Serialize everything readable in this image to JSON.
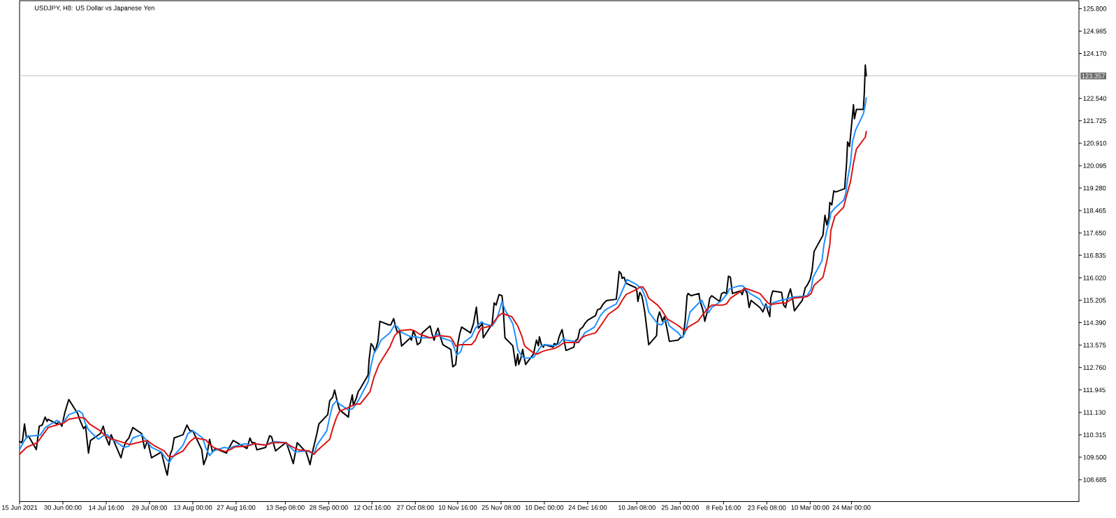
{
  "chart_data": {
    "type": "line",
    "title": "USDJPY, H8: US Dollar vs Japanese Yen",
    "xlim": [
      "2021-06-15T08:00",
      "2022-06-09T00:00"
    ],
    "ylim": [
      107.89,
      126.09
    ],
    "xticks": [
      {
        "value": "2021-06-15T08:00",
        "label": "15 Jun 2021"
      },
      {
        "value": "2021-06-30T00:00",
        "label": "30 Jun 00:00"
      },
      {
        "value": "2021-07-14T16:00",
        "label": "14 Jul 16:00"
      },
      {
        "value": "2021-07-29T08:00",
        "label": "29 Jul 08:00"
      },
      {
        "value": "2021-08-13T00:00",
        "label": "13 Aug 00:00"
      },
      {
        "value": "2021-08-27T16:00",
        "label": "27 Aug 16:00"
      },
      {
        "value": "2021-09-13T08:00",
        "label": "13 Sep 08:00"
      },
      {
        "value": "2021-09-28T00:00",
        "label": "28 Sep 00:00"
      },
      {
        "value": "2021-10-12T16:00",
        "label": "12 Oct 16:00"
      },
      {
        "value": "2021-10-27T08:00",
        "label": "27 Oct 08:00"
      },
      {
        "value": "2021-11-10T16:00",
        "label": "10 Nov 16:00"
      },
      {
        "value": "2021-11-25T08:00",
        "label": "25 Nov 08:00"
      },
      {
        "value": "2021-12-10T00:00",
        "label": "10 Dec 00:00"
      },
      {
        "value": "2021-12-24T16:00",
        "label": "24 Dec 16:00"
      },
      {
        "value": "2022-01-10T08:00",
        "label": "10 Jan 08:00"
      },
      {
        "value": "2022-01-25T00:00",
        "label": "25 Jan 00:00"
      },
      {
        "value": "2022-02-08T16:00",
        "label": "8 Feb 16:00"
      },
      {
        "value": "2022-02-23T08:00",
        "label": "23 Feb 08:00"
      },
      {
        "value": "2022-03-10T00:00",
        "label": "10 Mar 00:00"
      },
      {
        "value": "2022-03-24T00:00",
        "label": "24 Mar 00:00"
      }
    ],
    "yticks": [
      108.685,
      {
        "value": 109.5,
        "label": "109.500"
      },
      110.315,
      {
        "value": 111.13,
        "label": "111.130"
      },
      111.945,
      {
        "value": 112.76,
        "label": "112.760"
      },
      113.575,
      {
        "value": 114.39,
        "label": "114.390"
      },
      115.205,
      {
        "value": 116.02,
        "label": "116.020"
      },
      116.835,
      {
        "value": 117.65,
        "label": "117.650"
      },
      118.465,
      {
        "value": 119.28,
        "label": "119.280"
      },
      120.095,
      {
        "value": 120.91,
        "label": "120.910"
      },
      121.725,
      {
        "value": 122.54,
        "label": "122.540"
      },
      {
        "value": 124.17,
        "label": "124.170"
      },
      124.985,
      {
        "value": 125.8,
        "label": "125.800"
      }
    ],
    "ref_lines": [
      {
        "axis": "y",
        "value": 123.357,
        "label": "123.357",
        "color": "#c0c0c0"
      }
    ],
    "series": [
      {
        "color": "#000000",
        "x": [
          "2021-06-15T08:00",
          "2021-06-16T00:00",
          "2021-06-16T08:00",
          "2021-06-17T00:00",
          "2021-06-17T16:00",
          "2021-06-18T08:00",
          "2021-06-21T00:00",
          "2021-06-22T00:00",
          "2021-06-23T00:00",
          "2021-06-24T00:00",
          "2021-06-24T16:00",
          "2021-06-25T00:00",
          "2021-06-28T00:00",
          "2021-06-28T16:00",
          "2021-06-29T16:00",
          "2021-06-30T16:00",
          "2021-07-02T00:00",
          "2021-07-05T00:00",
          "2021-07-05T16:00",
          "2021-07-07T00:00",
          "2021-07-07T16:00",
          "2021-07-08T16:00",
          "2021-07-09T08:00",
          "2021-07-12T16:00",
          "2021-07-13T16:00",
          "2021-07-14T16:00",
          "2021-07-15T16:00",
          "2021-07-16T08:00",
          "2021-07-19T16:00",
          "2021-07-20T08:00",
          "2021-07-21T08:00",
          "2021-07-22T08:00",
          "2021-07-23T16:00",
          "2021-07-26T16:00",
          "2021-07-27T16:00",
          "2021-07-28T16:00",
          "2021-07-30T00:00",
          "2021-08-02T08:00",
          "2021-08-03T16:00",
          "2021-08-04T08:00",
          "2021-08-05T08:00",
          "2021-08-06T00:00",
          "2021-08-06T16:00",
          "2021-08-09T16:00",
          "2021-08-11T00:00",
          "2021-08-12T00:00",
          "2021-08-13T00:00",
          "2021-08-16T00:00",
          "2021-08-16T16:00",
          "2021-08-17T16:00",
          "2021-08-18T16:00",
          "2021-08-19T16:00",
          "2021-08-20T16:00",
          "2021-08-24T08:00",
          "2021-08-25T08:00",
          "2021-08-26T16:00",
          "2021-08-30T00:00",
          "2021-08-31T08:00",
          "2021-09-01T08:00",
          "2021-09-02T00:00",
          "2021-09-03T00:00",
          "2021-09-03T16:00",
          "2021-09-06T16:00",
          "2021-09-08T00:00",
          "2021-09-08T16:00",
          "2021-09-10T00:00",
          "2021-09-13T00:00",
          "2021-09-13T16:00",
          "2021-09-15T00:00",
          "2021-09-16T00:00",
          "2021-09-16T16:00",
          "2021-09-17T08:00",
          "2021-09-20T08:00",
          "2021-09-21T00:00",
          "2021-09-21T16:00",
          "2021-09-22T16:00",
          "2021-09-24T00:00",
          "2021-09-24T16:00",
          "2021-09-27T16:00",
          "2021-09-28T08:00",
          "2021-09-29T08:00",
          "2021-09-30T00:00",
          "2021-10-01T00:00",
          "2021-10-01T16:00",
          "2021-10-04T16:00",
          "2021-10-05T00:00",
          "2021-10-06T00:00",
          "2021-10-06T08:00",
          "2021-10-07T08:00",
          "2021-10-08T00:00",
          "2021-10-08T16:00",
          "2021-10-11T08:00",
          "2021-10-11T16:00",
          "2021-10-12T08:00",
          "2021-10-13T00:00",
          "2021-10-13T16:00",
          "2021-10-14T16:00",
          "2021-10-15T08:00",
          "2021-10-18T08:00",
          "2021-10-19T00:00",
          "2021-10-20T00:00",
          "2021-10-20T16:00",
          "2021-10-21T08:00",
          "2021-10-22T00:00",
          "2021-10-22T16:00",
          "2021-10-25T16:00",
          "2021-10-26T00:00",
          "2021-10-26T16:00",
          "2021-10-27T08:00",
          "2021-10-28T00:00",
          "2021-10-29T00:00",
          "2021-10-29T16:00",
          "2021-11-01T08:00",
          "2021-11-02T00:00",
          "2021-11-02T16:00",
          "2021-11-03T08:00",
          "2021-11-04T00:00",
          "2021-11-04T16:00",
          "2021-11-05T16:00",
          "2021-11-08T08:00",
          "2021-11-09T00:00",
          "2021-11-10T00:00",
          "2021-11-10T16:00",
          "2021-11-11T08:00",
          "2021-11-12T00:00",
          "2021-11-15T00:00",
          "2021-11-16T00:00",
          "2021-11-17T00:00",
          "2021-11-17T16:00",
          "2021-11-18T16:00",
          "2021-11-19T00:00",
          "2021-11-19T08:00",
          "2021-11-22T08:00",
          "2021-11-23T00:00",
          "2021-11-23T16:00",
          "2021-11-24T00:00",
          "2021-11-24T16:00",
          "2021-11-25T16:00",
          "2021-11-26T00:00",
          "2021-11-26T16:00",
          "2021-11-29T08:00",
          "2021-11-30T08:00",
          "2021-12-01T00:00",
          "2021-12-01T08:00",
          "2021-12-02T00:00",
          "2021-12-02T16:00",
          "2021-12-03T00:00",
          "2021-12-03T16:00",
          "2021-12-06T08:00",
          "2021-12-07T08:00",
          "2021-12-08T00:00",
          "2021-12-08T08:00",
          "2021-12-09T00:00",
          "2021-12-09T16:00",
          "2021-12-10T00:00",
          "2021-12-13T00:00",
          "2021-12-13T08:00",
          "2021-12-14T08:00",
          "2021-12-15T00:00",
          "2021-12-16T00:00",
          "2021-12-16T16:00",
          "2021-12-17T08:00",
          "2021-12-20T00:00",
          "2021-12-20T08:00",
          "2021-12-21T08:00",
          "2021-12-22T00:00",
          "2021-12-23T00:00",
          "2021-12-23T16:00",
          "2021-12-24T16:00",
          "2021-12-27T08:00",
          "2021-12-28T00:00",
          "2021-12-29T00:00",
          "2021-12-29T16:00",
          "2021-12-30T16:00",
          "2021-12-31T08:00",
          "2022-01-03T08:00",
          "2022-01-03T16:00",
          "2022-01-04T08:00",
          "2022-01-05T00:00",
          "2022-01-05T08:00",
          "2022-01-06T00:00",
          "2022-01-06T16:00",
          "2022-01-07T08:00",
          "2022-01-10T00:00",
          "2022-01-10T08:00",
          "2022-01-10T16:00",
          "2022-01-11T08:00",
          "2022-01-12T00:00",
          "2022-01-12T08:00",
          "2022-01-13T00:00",
          "2022-01-13T16:00",
          "2022-01-14T08:00",
          "2022-01-17T00:00",
          "2022-01-17T08:00",
          "2022-01-18T00:00",
          "2022-01-18T16:00",
          "2022-01-19T00:00",
          "2022-01-19T16:00",
          "2022-01-20T16:00",
          "2022-01-21T08:00",
          "2022-01-24T08:00",
          "2022-01-25T00:00",
          "2022-01-26T00:00",
          "2022-01-26T16:00",
          "2022-01-27T08:00",
          "2022-01-27T16:00",
          "2022-01-28T16:00",
          "2022-01-31T08:00",
          "2022-01-31T16:00",
          "2022-02-01T16:00",
          "2022-02-02T08:00",
          "2022-02-03T08:00",
          "2022-02-04T00:00",
          "2022-02-04T16:00",
          "2022-02-07T08:00",
          "2022-02-08T00:00",
          "2022-02-09T00:00",
          "2022-02-09T16:00",
          "2022-02-10T08:00",
          "2022-02-11T00:00",
          "2022-02-11T16:00",
          "2022-02-14T08:00",
          "2022-02-15T00:00",
          "2022-02-15T16:00",
          "2022-02-16T00:00",
          "2022-02-16T16:00",
          "2022-02-17T08:00",
          "2022-02-18T00:00",
          "2022-02-21T00:00",
          "2022-02-22T00:00",
          "2022-02-23T00:00",
          "2022-02-23T16:00",
          "2022-02-24T08:00",
          "2022-02-24T16:00",
          "2022-02-25T08:00",
          "2022-02-28T08:00",
          "2022-03-01T00:00",
          "2022-03-01T16:00",
          "2022-03-02T08:00",
          "2022-03-03T08:00",
          "2022-03-04T00:00",
          "2022-03-04T16:00",
          "2022-03-07T08:00",
          "2022-03-08T08:00",
          "2022-03-09T00:00",
          "2022-03-10T00:00",
          "2022-03-10T16:00",
          "2022-03-11T08:00",
          "2022-03-14T08:00",
          "2022-03-15T00:00",
          "2022-03-15T16:00",
          "2022-03-16T08:00",
          "2022-03-16T16:00",
          "2022-03-17T08:00",
          "2022-03-18T00:00",
          "2022-03-18T16:00",
          "2022-03-21T16:00",
          "2022-03-22T08:00",
          "2022-03-22T16:00",
          "2022-03-23T08:00",
          "2022-03-24T00:00",
          "2022-03-24T16:00",
          "2022-03-25T00:00",
          "2022-03-25T16:00",
          "2022-03-28T00:00",
          "2022-03-28T08:00",
          "2022-03-28T16:00",
          "2022-03-29T00:00"
        ],
        "values": [
          110.07,
          110.03,
          110.11,
          110.71,
          110.2,
          110.28,
          109.78,
          110.63,
          110.67,
          110.96,
          110.8,
          110.88,
          110.71,
          110.8,
          110.63,
          111.13,
          111.6,
          111.09,
          110.88,
          110.54,
          110.63,
          109.65,
          110.11,
          110.36,
          110.63,
          110.2,
          109.94,
          110.32,
          109.48,
          109.78,
          110.07,
          110.2,
          110.58,
          110.36,
          109.82,
          110.11,
          109.48,
          109.69,
          109.1,
          108.85,
          109.61,
          109.78,
          110.2,
          110.32,
          110.67,
          110.46,
          110.46,
          109.78,
          109.23,
          109.52,
          110.15,
          109.69,
          109.82,
          109.65,
          109.86,
          110.11,
          109.9,
          109.82,
          110.2,
          110.03,
          110.03,
          109.77,
          109.86,
          110.28,
          110.24,
          109.73,
          109.99,
          110.03,
          109.61,
          109.27,
          109.65,
          110.03,
          109.69,
          109.48,
          109.23,
          109.77,
          110.36,
          110.71,
          111.05,
          111.55,
          111.68,
          111.94,
          111.47,
          111.22,
          110.96,
          111.3,
          111.77,
          111.39,
          111.64,
          111.89,
          111.99,
          112.49,
          113.04,
          113.63,
          113.54,
          113.33,
          113.71,
          114.44,
          114.31,
          114.31,
          114.54,
          114.23,
          114.02,
          114.1,
          113.54,
          113.84,
          113.75,
          114.1,
          113.92,
          113.59,
          113.67,
          114.02,
          114.27,
          113.98,
          113.75,
          114.02,
          114.19,
          113.92,
          113.59,
          113.42,
          112.79,
          112.87,
          113.59,
          113.98,
          114.23,
          114.02,
          114.35,
          114.95,
          114.19,
          114.31,
          114.4,
          113.84,
          114.35,
          115.11,
          115.03,
          115.16,
          115.41,
          115.37,
          115.03,
          113.84,
          113.55,
          112.83,
          113.25,
          112.87,
          113.08,
          113.42,
          113.21,
          112.87,
          113.25,
          113.76,
          113.55,
          113.88,
          113.59,
          113.5,
          113.59,
          113.5,
          113.63,
          113.59,
          113.88,
          114.14,
          113.76,
          113.38,
          113.5,
          113.71,
          113.8,
          114.14,
          114.23,
          114.35,
          114.48,
          114.65,
          114.86,
          114.9,
          115.03,
          115.16,
          115.2,
          115.24,
          115.53,
          116.25,
          116.17,
          116.0,
          116.04,
          115.83,
          115.79,
          115.66,
          115.53,
          115.16,
          115.49,
          115.37,
          115.2,
          114.78,
          114.19,
          113.59,
          113.92,
          114.52,
          114.78,
          114.57,
          114.44,
          114.61,
          114.1,
          113.71,
          113.76,
          113.84,
          113.88,
          114.44,
          115.37,
          115.45,
          115.37,
          115.45,
          115.2,
          114.86,
          114.44,
          114.86,
          115.28,
          115.37,
          115.16,
          115.45,
          115.49,
          115.45,
          116.08,
          116.04,
          115.45,
          115.54,
          115.41,
          115.66,
          115.58,
          115.45,
          114.94,
          115.2,
          114.94,
          114.78,
          115.07,
          114.82,
          114.61,
          115.28,
          115.54,
          115.49,
          115.03,
          114.94,
          115.28,
          115.62,
          115.28,
          114.82,
          115.2,
          115.66,
          115.75,
          115.96,
          116.29,
          116.98,
          117.57,
          118.29,
          117.94,
          118.25,
          118.76,
          118.67,
          119.18,
          119.14,
          119.26,
          120.19,
          120.96,
          120.79,
          121.55,
          122.31,
          121.8,
          122.14,
          122.14,
          122.74,
          123.75,
          123.36
        ]
      },
      {
        "color": "#1e90ff",
        "x": [
          "2021-06-15T08:00",
          "2021-06-17T00:00",
          "2021-06-18T00:00",
          "2021-06-22T08:00",
          "2021-06-24T00:00",
          "2021-06-28T00:00",
          "2021-06-29T08:00",
          "2021-06-30T16:00",
          "2021-07-02T00:00",
          "2021-07-05T08:00",
          "2021-07-06T16:00",
          "2021-07-07T08:00",
          "2021-07-08T16:00",
          "2021-07-12T00:00",
          "2021-07-13T16:00",
          "2021-07-15T00:00",
          "2021-07-16T16:00",
          "2021-07-20T16:00",
          "2021-07-22T08:00",
          "2021-07-23T16:00",
          "2021-07-26T16:00",
          "2021-07-28T00:00",
          "2021-07-30T00:00",
          "2021-08-02T08:00",
          "2021-08-04T00:00",
          "2021-08-05T00:00",
          "2021-08-06T00:00",
          "2021-08-09T16:00",
          "2021-08-11T08:00",
          "2021-08-13T00:00",
          "2021-08-16T08:00",
          "2021-08-17T08:00",
          "2021-08-18T16:00",
          "2021-08-20T00:00",
          "2021-08-23T16:00",
          "2021-08-25T08:00",
          "2021-08-27T00:00",
          "2021-08-30T16:00",
          "2021-09-01T08:00",
          "2021-09-03T00:00",
          "2021-09-06T16:00",
          "2021-09-08T08:00",
          "2021-09-10T00:00",
          "2021-09-13T08:00",
          "2021-09-14T16:00",
          "2021-09-16T16:00",
          "2021-09-20T08:00",
          "2021-09-21T16:00",
          "2021-09-23T00:00",
          "2021-09-24T00:00",
          "2021-09-27T08:00",
          "2021-09-28T08:00",
          "2021-09-29T08:00",
          "2021-09-30T16:00",
          "2021-10-01T16:00",
          "2021-10-04T16:00",
          "2021-10-06T00:00",
          "2021-10-07T00:00",
          "2021-10-08T00:00",
          "2021-10-11T08:00",
          "2021-10-12T08:00",
          "2021-10-13T08:00",
          "2021-10-14T16:00",
          "2021-10-15T16:00",
          "2021-10-18T16:00",
          "2021-10-20T08:00",
          "2021-10-21T08:00",
          "2021-10-22T08:00",
          "2021-10-25T16:00",
          "2021-10-27T08:00",
          "2021-10-29T00:00",
          "2021-11-01T16:00",
          "2021-11-03T00:00",
          "2021-11-04T00:00",
          "2021-11-05T08:00",
          "2021-11-08T16:00",
          "2021-11-09T16:00",
          "2021-11-10T08:00",
          "2021-11-11T16:00",
          "2021-11-12T16:00",
          "2021-11-15T08:00",
          "2021-11-16T16:00",
          "2021-11-17T16:00",
          "2021-11-18T16:00",
          "2021-11-19T16:00",
          "2021-11-22T08:00",
          "2021-11-23T16:00",
          "2021-11-24T16:00",
          "2021-11-25T16:00",
          "2021-11-26T16:00",
          "2021-11-29T08:00",
          "2021-11-30T08:00",
          "2021-12-01T00:00",
          "2021-12-02T08:00",
          "2021-12-03T08:00",
          "2021-12-06T08:00",
          "2021-12-07T16:00",
          "2021-12-09T00:00",
          "2021-12-10T08:00",
          "2021-12-13T16:00",
          "2021-12-15T00:00",
          "2021-12-16T08:00",
          "2021-12-17T08:00",
          "2021-12-20T08:00",
          "2021-12-21T16:00",
          "2021-12-22T16:00",
          "2021-12-23T16:00",
          "2021-12-27T00:00",
          "2021-12-28T00:00",
          "2021-12-29T00:00",
          "2021-12-30T08:00",
          "2021-12-31T08:00",
          "2022-01-03T08:00",
          "2022-01-04T16:00",
          "2022-01-06T00:00",
          "2022-01-07T00:00",
          "2022-01-10T00:00",
          "2022-01-11T00:00",
          "2022-01-12T00:00",
          "2022-01-13T08:00",
          "2022-01-14T08:00",
          "2022-01-17T08:00",
          "2022-01-18T16:00",
          "2022-01-19T16:00",
          "2022-01-20T16:00",
          "2022-01-21T08:00",
          "2022-01-24T08:00",
          "2022-01-25T16:00",
          "2022-01-26T16:00",
          "2022-01-27T16:00",
          "2022-01-28T08:00",
          "2022-01-31T08:00",
          "2022-02-01T08:00",
          "2022-02-02T00:00",
          "2022-02-03T00:00",
          "2022-02-03T16:00",
          "2022-02-04T16:00",
          "2022-02-07T16:00",
          "2022-02-09T00:00",
          "2022-02-10T00:00",
          "2022-02-10T16:00",
          "2022-02-14T00:00",
          "2022-02-15T08:00",
          "2022-02-16T08:00",
          "2022-02-17T16:00",
          "2022-02-21T00:00",
          "2022-02-22T00:00",
          "2022-02-23T00:00",
          "2022-02-24T08:00",
          "2022-02-25T08:00",
          "2022-02-28T08:00",
          "2022-03-01T16:00",
          "2022-03-03T00:00",
          "2022-03-04T08:00",
          "2022-03-07T16:00",
          "2022-03-09T00:00",
          "2022-03-10T08:00",
          "2022-03-11T00:00",
          "2022-03-14T00:00",
          "2022-03-14T16:00",
          "2022-03-15T16:00",
          "2022-03-16T16:00",
          "2022-03-17T00:00",
          "2022-03-18T08:00",
          "2022-03-21T08:00",
          "2022-03-22T00:00",
          "2022-03-22T16:00",
          "2022-03-23T16:00",
          "2022-03-24T08:00",
          "2022-03-25T08:00",
          "2022-03-28T00:00",
          "2022-03-28T16:00",
          "2022-03-29T00:00"
        ],
        "values": [
          109.78,
          110.11,
          110.26,
          110.3,
          110.58,
          110.84,
          110.71,
          110.84,
          111.05,
          111.19,
          111.09,
          110.8,
          110.5,
          110.15,
          110.28,
          110.32,
          110.15,
          109.86,
          109.9,
          110.2,
          110.32,
          110.15,
          109.86,
          109.69,
          109.44,
          109.31,
          109.48,
          109.94,
          110.36,
          110.46,
          110.2,
          109.86,
          109.56,
          109.73,
          109.86,
          109.82,
          109.9,
          109.99,
          109.94,
          109.99,
          109.94,
          110.03,
          110.07,
          110.03,
          109.9,
          109.69,
          109.73,
          109.69,
          109.61,
          109.94,
          110.46,
          110.96,
          111.39,
          111.55,
          111.43,
          111.22,
          111.26,
          111.39,
          111.55,
          112.24,
          112.83,
          113.29,
          113.5,
          113.75,
          114.02,
          114.31,
          114.23,
          114.06,
          113.88,
          113.88,
          113.84,
          113.84,
          113.92,
          113.98,
          113.84,
          113.71,
          113.42,
          113.21,
          113.33,
          113.67,
          113.88,
          114.19,
          114.31,
          114.42,
          114.35,
          114.27,
          114.48,
          114.78,
          115.16,
          114.86,
          114.35,
          113.84,
          113.42,
          113.17,
          113.1,
          113.12,
          113.33,
          113.55,
          113.59,
          113.55,
          113.63,
          113.8,
          113.76,
          113.71,
          113.67,
          113.84,
          114.02,
          114.23,
          114.44,
          114.65,
          114.82,
          114.9,
          115.07,
          115.37,
          115.7,
          115.96,
          115.79,
          115.7,
          115.62,
          115.28,
          114.78,
          114.35,
          114.31,
          114.44,
          114.48,
          114.27,
          114.02,
          113.84,
          114.02,
          114.48,
          114.78,
          115.11,
          115.21,
          115.03,
          114.82,
          114.76,
          114.94,
          115.16,
          115.32,
          115.45,
          115.62,
          115.73,
          115.72,
          115.58,
          115.45,
          115.24,
          115.03,
          114.99,
          114.94,
          115.11,
          115.21,
          115.24,
          115.28,
          115.32,
          115.35,
          115.37,
          115.62,
          116.04,
          116.64,
          117.23,
          117.74,
          118.17,
          118.38,
          118.55,
          118.84,
          119.05,
          119.6,
          120.19,
          120.96,
          121.38,
          121.97,
          122.31,
          122.56
        ]
      },
      {
        "color": "#dc1414",
        "x": [
          "2021-06-15T08:00",
          "2021-06-17T16:00",
          "2021-06-21T08:00",
          "2021-06-23T00:00",
          "2021-06-25T00:00",
          "2021-06-29T00:00",
          "2021-06-30T08:00",
          "2021-07-02T00:00",
          "2021-07-05T16:00",
          "2021-07-07T08:00",
          "2021-07-09T00:00",
          "2021-07-12T16:00",
          "2021-07-14T08:00",
          "2021-07-16T00:00",
          "2021-07-20T08:00",
          "2021-07-22T16:00",
          "2021-07-26T16:00",
          "2021-07-28T16:00",
          "2021-07-30T16:00",
          "2021-08-03T08:00",
          "2021-08-04T16:00",
          "2021-08-06T00:00",
          "2021-08-09T16:00",
          "2021-08-12T00:00",
          "2021-08-13T16:00",
          "2021-08-17T08:00",
          "2021-08-19T00:00",
          "2021-08-20T16:00",
          "2021-08-24T00:00",
          "2021-08-25T16:00",
          "2021-08-27T08:00",
          "2021-08-31T08:00",
          "2021-09-02T16:00",
          "2021-09-06T16:00",
          "2021-09-09T00:00",
          "2021-09-13T08:00",
          "2021-09-15T08:00",
          "2021-09-17T16:00",
          "2021-09-21T08:00",
          "2021-09-23T00:00",
          "2021-09-24T00:00",
          "2021-09-28T08:00",
          "2021-09-29T08:00",
          "2021-09-30T16:00",
          "2021-10-01T16:00",
          "2021-10-05T08:00",
          "2021-10-07T00:00",
          "2021-10-08T16:00",
          "2021-10-12T00:00",
          "2021-10-13T08:00",
          "2021-10-15T00:00",
          "2021-10-18T16:00",
          "2021-10-20T08:00",
          "2021-10-22T00:00",
          "2021-10-25T16:00",
          "2021-10-27T00:00",
          "2021-10-28T16:00",
          "2021-11-01T08:00",
          "2021-11-03T00:00",
          "2021-11-04T08:00",
          "2021-11-08T00:00",
          "2021-11-09T00:00",
          "2021-11-10T00:00",
          "2021-11-11T16:00",
          "2021-11-15T08:00",
          "2021-11-16T16:00",
          "2021-11-17T16:00",
          "2021-11-18T16:00",
          "2021-11-22T00:00",
          "2021-11-23T08:00",
          "2021-11-24T16:00",
          "2021-11-25T16:00",
          "2021-11-29T00:00",
          "2021-11-30T00:00",
          "2021-12-01T00:00",
          "2021-12-02T08:00",
          "2021-12-03T08:00",
          "2021-12-06T08:00",
          "2021-12-07T16:00",
          "2021-12-09T00:00",
          "2021-12-10T08:00",
          "2021-12-13T16:00",
          "2021-12-15T00:00",
          "2021-12-16T16:00",
          "2021-12-20T00:00",
          "2021-12-21T08:00",
          "2021-12-22T16:00",
          "2021-12-24T00:00",
          "2021-12-27T08:00",
          "2021-12-29T00:00",
          "2021-12-30T08:00",
          "2021-12-31T16:00",
          "2022-01-04T00:00",
          "2022-01-05T08:00",
          "2022-01-06T16:00",
          "2022-01-10T08:00",
          "2022-01-11T08:00",
          "2022-01-12T08:00",
          "2022-01-13T08:00",
          "2022-01-14T08:00",
          "2022-01-17T08:00",
          "2022-01-18T16:00",
          "2022-01-19T16:00",
          "2022-01-20T16:00",
          "2022-01-24T00:00",
          "2022-01-25T00:00",
          "2022-01-26T00:00",
          "2022-01-27T00:00",
          "2022-01-27T16:00",
          "2022-01-31T00:00",
          "2022-02-01T16:00",
          "2022-02-03T08:00",
          "2022-02-04T16:00",
          "2022-02-08T08:00",
          "2022-02-09T16:00",
          "2022-02-11T00:00",
          "2022-02-14T08:00",
          "2022-02-16T00:00",
          "2022-02-17T16:00",
          "2022-02-21T00:00",
          "2022-02-22T08:00",
          "2022-02-23T16:00",
          "2022-02-24T16:00",
          "2022-02-28T08:00",
          "2022-03-01T16:00",
          "2022-03-03T00:00",
          "2022-03-04T08:00",
          "2022-03-07T16:00",
          "2022-03-09T00:00",
          "2022-03-10T08:00",
          "2022-03-11T08:00",
          "2022-03-14T08:00",
          "2022-03-15T16:00",
          "2022-03-16T16:00",
          "2022-03-17T00:00",
          "2022-03-18T08:00",
          "2022-03-21T08:00",
          "2022-03-22T08:00",
          "2022-03-23T16:00",
          "2022-03-24T16:00",
          "2022-03-25T16:00",
          "2022-03-28T16:00",
          "2022-03-29T00:00"
        ],
        "values": [
          109.61,
          109.86,
          110.03,
          110.28,
          110.58,
          110.71,
          110.75,
          110.88,
          110.95,
          110.92,
          110.71,
          110.46,
          110.28,
          110.18,
          110.04,
          109.96,
          110.07,
          110.1,
          109.94,
          109.73,
          109.54,
          109.52,
          109.73,
          110.07,
          110.21,
          110.13,
          109.94,
          109.82,
          109.71,
          109.78,
          109.88,
          109.9,
          109.99,
          109.94,
          110.03,
          110.03,
          109.9,
          109.77,
          109.73,
          109.61,
          109.73,
          110.15,
          110.54,
          110.96,
          111.17,
          111.34,
          111.43,
          111.43,
          111.89,
          112.41,
          112.87,
          113.5,
          113.92,
          114.1,
          114.14,
          114.1,
          113.98,
          113.84,
          113.88,
          113.92,
          113.88,
          113.75,
          113.54,
          113.59,
          113.59,
          113.76,
          114.02,
          114.19,
          114.27,
          114.48,
          114.65,
          114.73,
          114.61,
          114.44,
          114.27,
          113.92,
          113.54,
          113.29,
          113.25,
          113.33,
          113.38,
          113.46,
          113.54,
          113.67,
          113.67,
          113.67,
          113.84,
          113.92,
          114.02,
          114.27,
          114.48,
          114.69,
          114.95,
          115.2,
          115.41,
          115.6,
          115.69,
          115.69,
          115.53,
          115.28,
          115.03,
          114.86,
          114.69,
          114.52,
          114.31,
          114.23,
          114.14,
          114.12,
          114.23,
          114.44,
          114.69,
          114.9,
          115.03,
          115.03,
          115.07,
          115.28,
          115.52,
          115.64,
          115.58,
          115.45,
          115.28,
          115.11,
          115.05,
          115.11,
          115.1,
          115.2,
          115.28,
          115.32,
          115.34,
          115.45,
          115.75,
          116.04,
          116.64,
          117.23,
          117.74,
          118.25,
          118.59,
          119.01,
          119.52,
          120.19,
          120.7,
          121.13,
          121.34
        ]
      }
    ]
  }
}
